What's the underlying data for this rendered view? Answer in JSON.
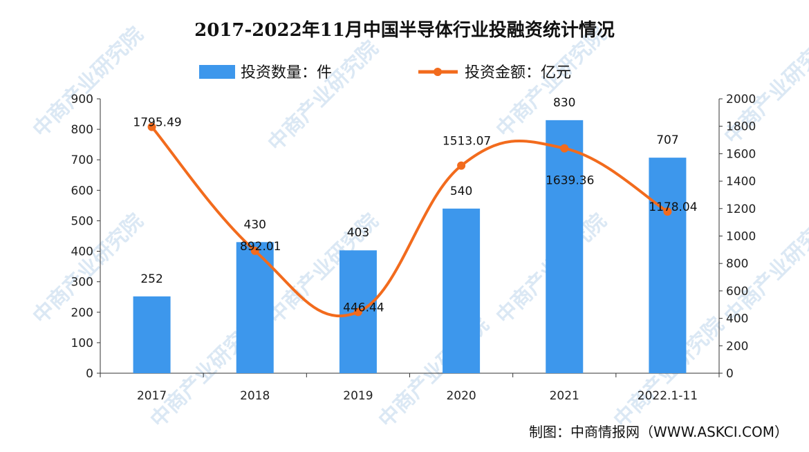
{
  "chart_data": {
    "type": "bar+line",
    "title": "2017-2022年11月中国半导体行业投融资统计情况",
    "categories": [
      "2017",
      "2018",
      "2019",
      "2020",
      "2021",
      "2022.1-11"
    ],
    "series": [
      {
        "name": "投资数量：件",
        "type": "bar",
        "axis": "left",
        "values": [
          252,
          430,
          403,
          540,
          830,
          707
        ],
        "labels": [
          "252",
          "430",
          "403",
          "540",
          "830",
          "707"
        ],
        "color": "#3d97ec"
      },
      {
        "name": "投资金额：亿元",
        "type": "line",
        "axis": "right",
        "values": [
          1795.49,
          892.01,
          446.44,
          1513.07,
          1639.36,
          1178.04
        ],
        "labels": [
          "1795.49",
          "892.01",
          "446.44",
          "1513.07",
          "1639.36",
          "1178.04"
        ],
        "color": "#f26b1d"
      }
    ],
    "left_axis": {
      "range": [
        0,
        900
      ],
      "ticks": [
        "0",
        "100",
        "200",
        "300",
        "400",
        "500",
        "600",
        "700",
        "800",
        "900"
      ]
    },
    "right_axis": {
      "range": [
        0,
        2000
      ],
      "ticks": [
        "0",
        "200",
        "400",
        "600",
        "800",
        "1000",
        "1200",
        "1400",
        "1600",
        "1800",
        "2000"
      ]
    },
    "legend": "top-center",
    "grid": false
  },
  "source": "制图：中商情报网（WWW.ASKCI.COM）",
  "watermark": "中商产业研究院"
}
